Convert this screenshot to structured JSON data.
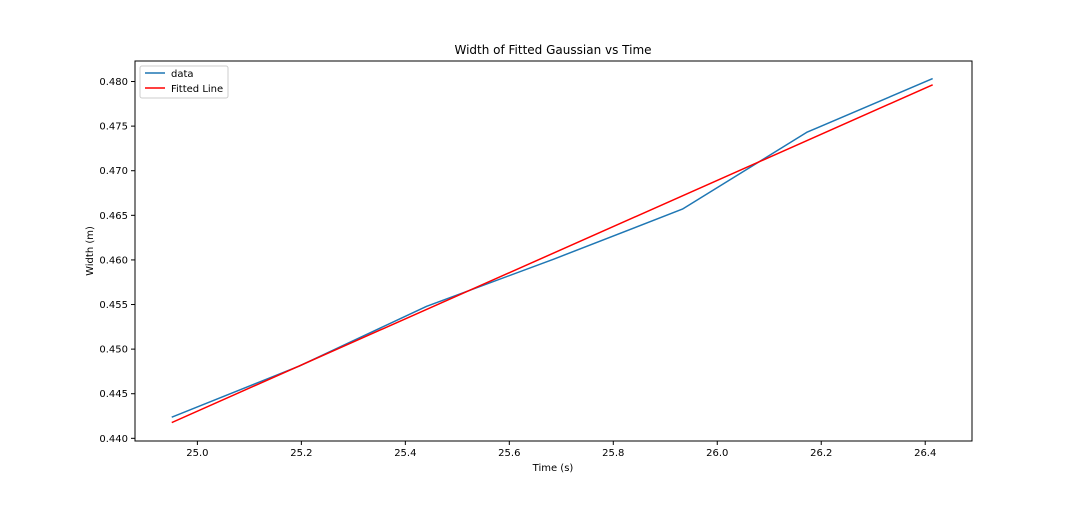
{
  "chart_data": {
    "type": "line",
    "title": "Width of Fitted Gaussian vs Time",
    "xlabel": "Time (s)",
    "ylabel": "Width (m)",
    "xlim": [
      24.88,
      26.49
    ],
    "ylim": [
      0.4397,
      0.4823
    ],
    "xticks": [
      25.0,
      25.2,
      25.4,
      25.6,
      25.8,
      26.0,
      26.2,
      26.4
    ],
    "xtick_labels": [
      "25.0",
      "25.2",
      "25.4",
      "25.6",
      "25.8",
      "26.0",
      "26.2",
      "26.4"
    ],
    "yticks": [
      0.44,
      0.445,
      0.45,
      0.455,
      0.46,
      0.465,
      0.47,
      0.475,
      0.48
    ],
    "ytick_labels": [
      "0.440",
      "0.445",
      "0.450",
      "0.455",
      "0.460",
      "0.465",
      "0.470",
      "0.475",
      "0.480"
    ],
    "grid": false,
    "legend_position": "top-left",
    "series": [
      {
        "name": "data",
        "color": "#1f77b4",
        "x": [
          24.952,
          25.196,
          25.441,
          25.686,
          25.933,
          26.172,
          26.413
        ],
        "y": [
          0.4424,
          0.4481,
          0.4548,
          0.4601,
          0.4657,
          0.4743,
          0.4803
        ]
      },
      {
        "name": "Fitted Line",
        "color": "#ff0000",
        "x": [
          24.952,
          26.413
        ],
        "y": [
          0.4418,
          0.4796
        ]
      }
    ]
  }
}
